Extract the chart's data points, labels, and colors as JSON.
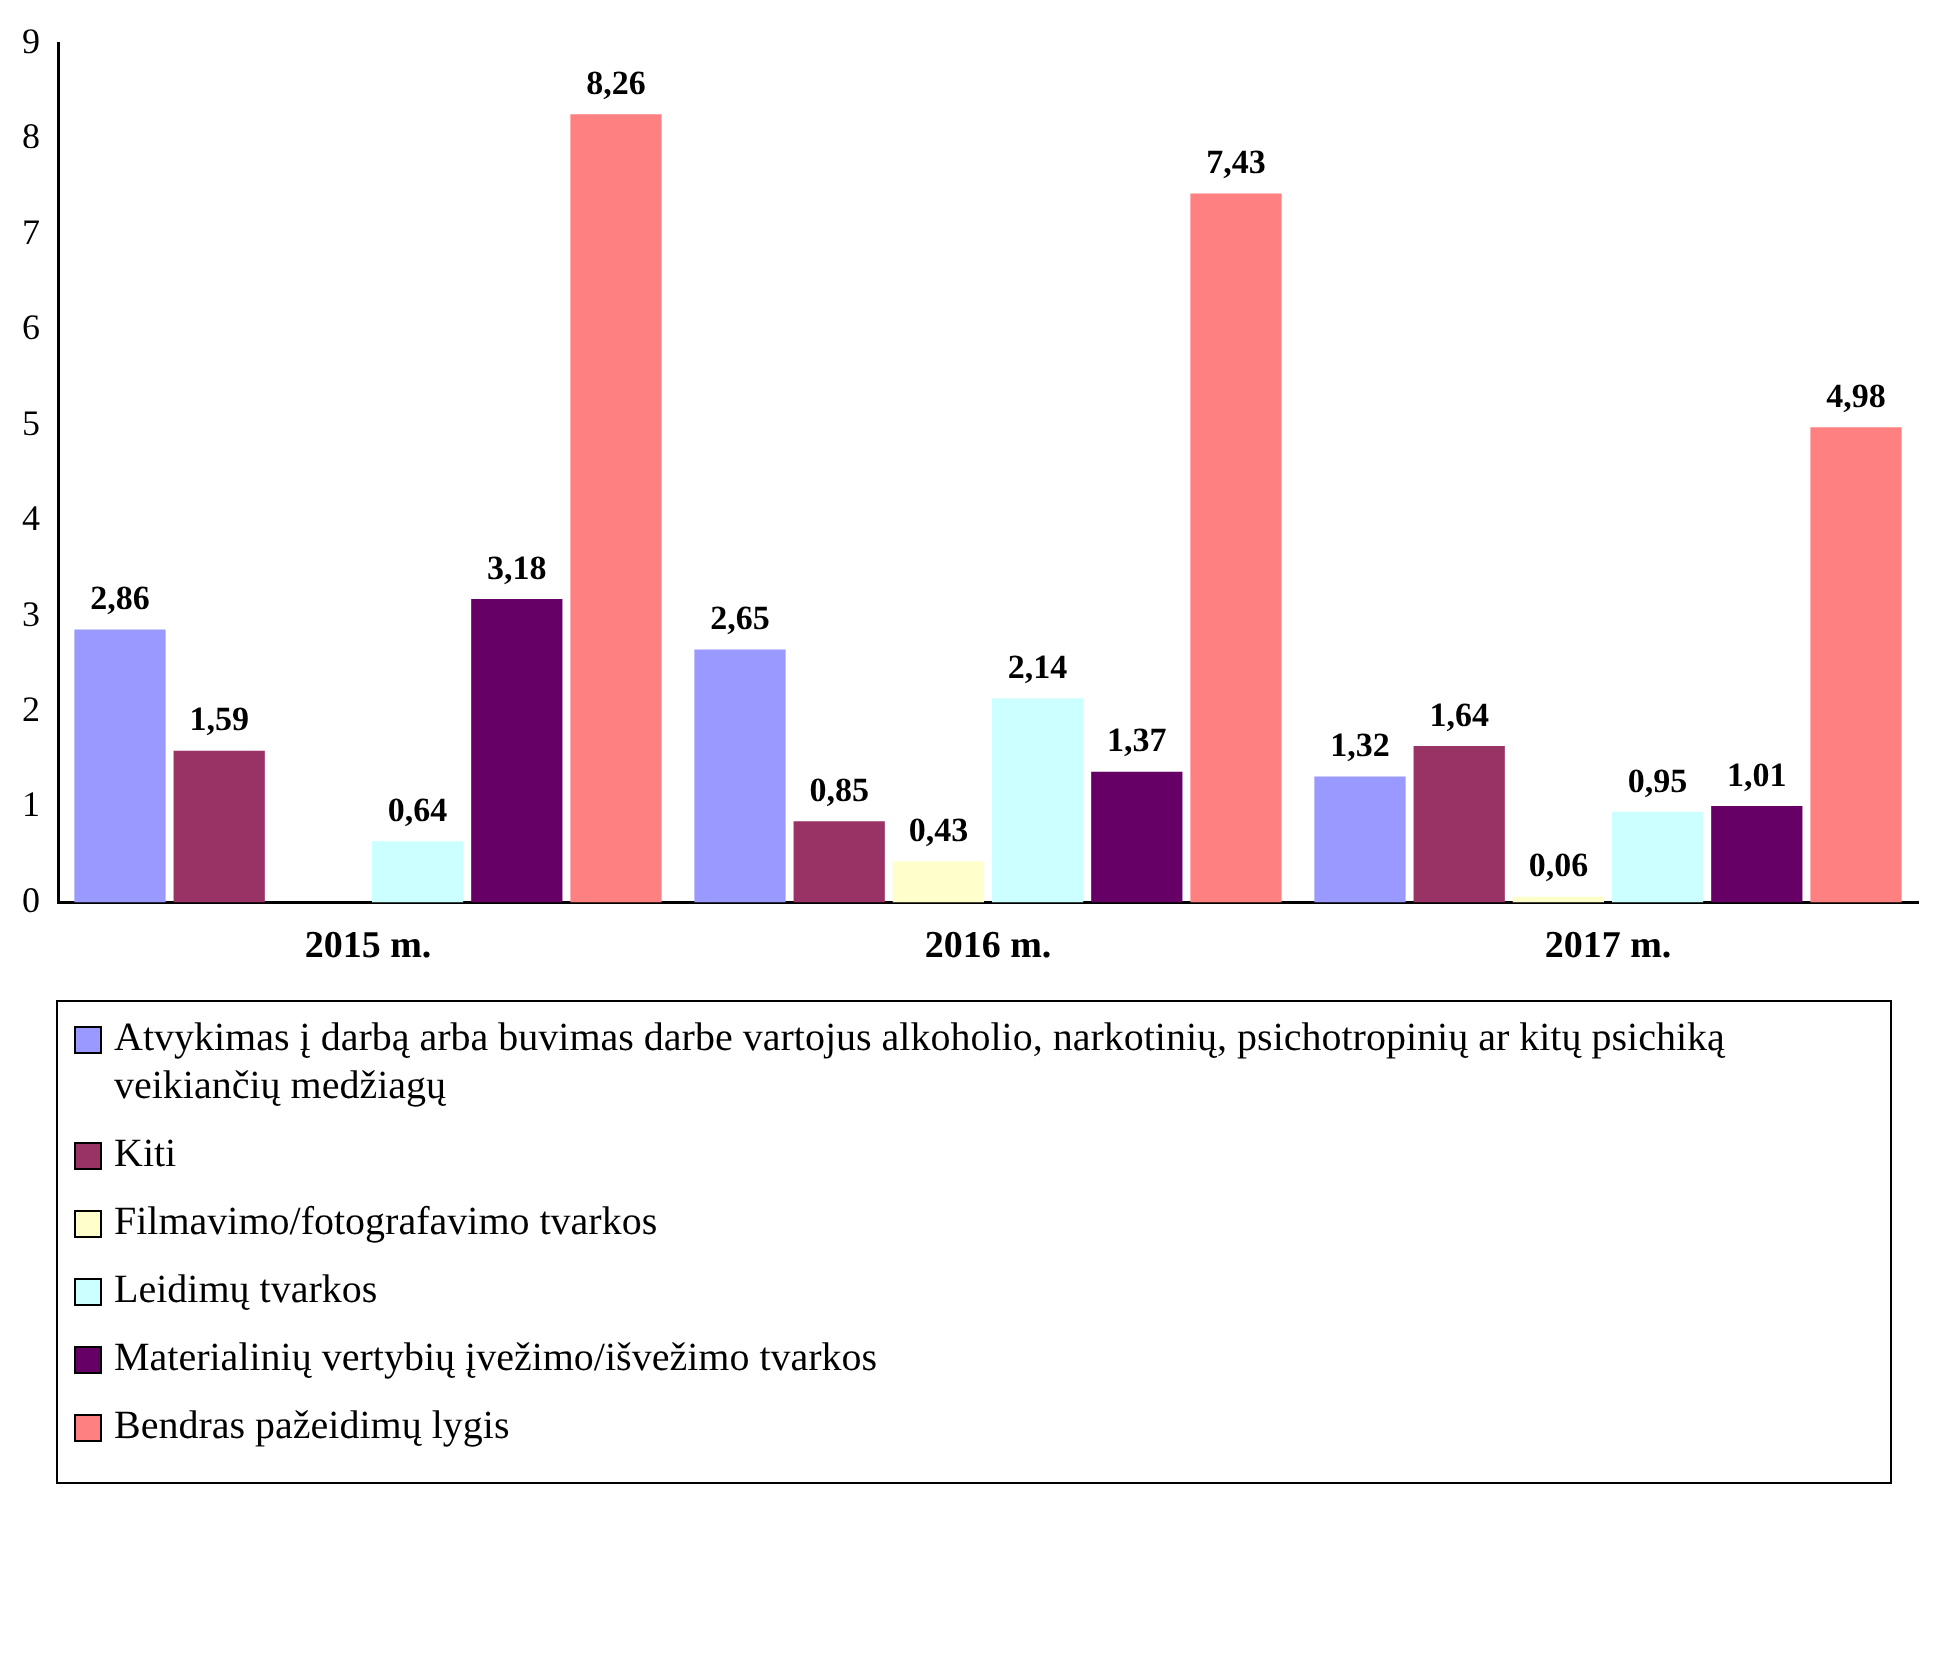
{
  "chart_data": {
    "type": "bar",
    "categories": [
      "2015 m.",
      "2016 m.",
      "2017 m."
    ],
    "series": [
      {
        "name": "Atvykimas į darbą arba buvimas darbe vartojus alkoholio, narkotinių, psichotropinių ar kitų psichiką veikiančių medžiagų",
        "color": "#9999ff",
        "values": [
          2.86,
          2.65,
          1.32
        ],
        "value_labels": [
          "2,86",
          "2,65",
          "1,32"
        ]
      },
      {
        "name": "Kiti",
        "color": "#993366",
        "values": [
          1.59,
          0.85,
          1.64
        ],
        "value_labels": [
          "1,59",
          "0,85",
          "1,64"
        ]
      },
      {
        "name": "Filmavimo/fotografavimo tvarkos",
        "color": "#ffffcc",
        "values": [
          null,
          0.43,
          0.06
        ],
        "value_labels": [
          null,
          "0,43",
          "0,06"
        ]
      },
      {
        "name": "Leidimų tvarkos",
        "color": "#ccffff",
        "values": [
          0.64,
          2.14,
          0.95
        ],
        "value_labels": [
          "0,64",
          "2,14",
          "0,95"
        ]
      },
      {
        "name": "Materialinių vertybių įvežimo/išvežimo tvarkos",
        "color": "#660066",
        "values": [
          3.18,
          1.37,
          1.01
        ],
        "value_labels": [
          "3,18",
          "1,37",
          "1,01"
        ]
      },
      {
        "name": "Bendras pažeidimų lygis",
        "color": "#ff8080",
        "values": [
          8.26,
          7.43,
          4.98
        ],
        "value_labels": [
          "8,26",
          "7,43",
          "4,98"
        ]
      }
    ],
    "ylim": [
      0,
      9
    ],
    "yticks": [
      0,
      1,
      2,
      3,
      4,
      5,
      6,
      7,
      8,
      9
    ],
    "grid": false,
    "legend": "bottom"
  }
}
